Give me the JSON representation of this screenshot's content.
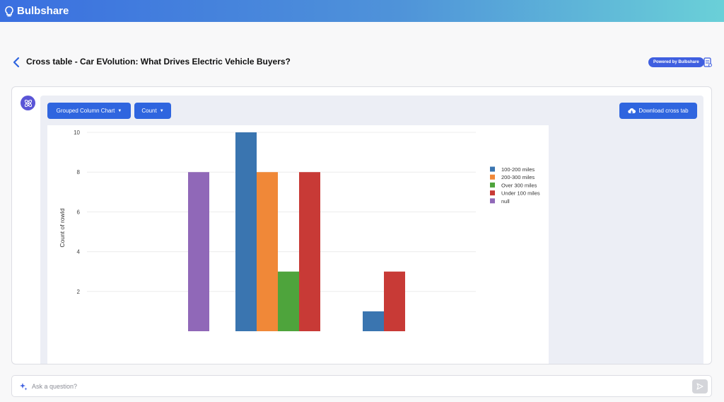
{
  "app": {
    "name": "Bulbshare"
  },
  "header": {
    "title": "Cross table - Car EVolution: What Drives Electric Vehicle Buyers?",
    "powered_by": "Powered by Bulbshare"
  },
  "toolbar": {
    "chart_type_label": "Grouped Column Chart",
    "measure_label": "Count",
    "download_label": "Download cross tab"
  },
  "chat": {
    "placeholder": "Ask a question?"
  },
  "chart_data": {
    "type": "bar",
    "grouped": true,
    "ylabel": "Count of rowId",
    "yticks": [
      2,
      4,
      6,
      8,
      10
    ],
    "grid": true,
    "legend_position": "top-right",
    "series": [
      {
        "name": "100-200 miles",
        "color": "#3a75b0",
        "values": [
          0,
          10,
          1
        ]
      },
      {
        "name": "200-300 miles",
        "color": "#f08838",
        "values": [
          0,
          8,
          0
        ]
      },
      {
        "name": "Over 300 miles",
        "color": "#4ea43c",
        "values": [
          0,
          3,
          0
        ]
      },
      {
        "name": "Under 100 miles",
        "color": "#c83a36",
        "values": [
          0,
          8,
          3
        ]
      },
      {
        "name": "null",
        "color": "#9068b8",
        "values": [
          8,
          0,
          0
        ]
      }
    ]
  }
}
